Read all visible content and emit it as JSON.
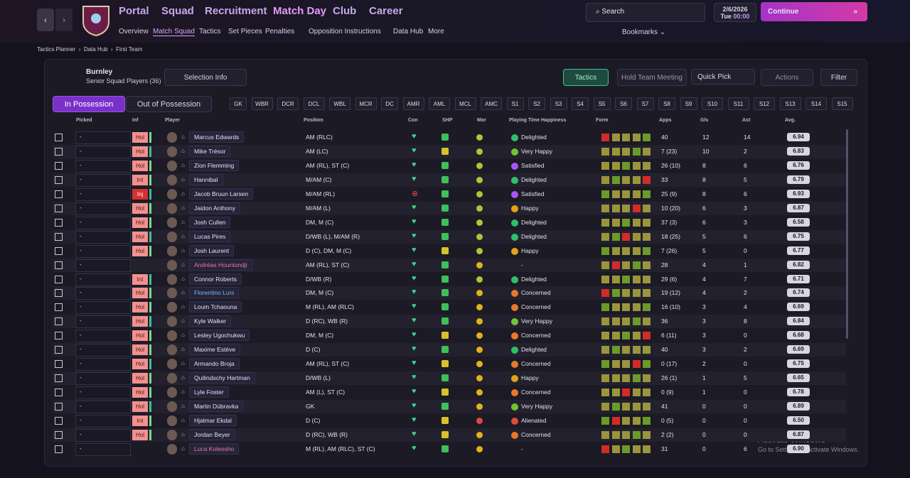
{
  "nav": {
    "menu": [
      "Portal",
      "Squad",
      "Recruitment",
      "Match Day",
      "Club",
      "Career"
    ],
    "submenu": [
      "Overview",
      "Match Squad",
      "Tactics",
      "Set Pieces",
      "Penalties",
      "Opposition Instructions",
      "Data Hub",
      "More"
    ],
    "search": "Search",
    "date": "2/6/2026",
    "day": "Tue",
    "time": "00:00",
    "continue": "Continue",
    "bookmarks": "Bookmarks"
  },
  "breadcrumb": [
    "Tactics Planner",
    "Data Hub",
    "First Team"
  ],
  "panel": {
    "club": "Burnley",
    "subtitle": "Senior Squad Players (36)",
    "selection_info": "Selection Info",
    "tactics": "Tactics",
    "hold_meeting": "Hold Team Meeting",
    "quick_pick": "Quick Pick",
    "actions": "Actions",
    "filter": "Filter",
    "tabs": [
      "In Possession",
      "Out of Possession"
    ],
    "positions": [
      "GK",
      "WBR",
      "DCR",
      "DCL",
      "WBL",
      "MCR",
      "DC",
      "AMR",
      "AML",
      "MCL",
      "AMC",
      "S1",
      "S2",
      "S3",
      "S4",
      "S5",
      "S6",
      "S7",
      "S8",
      "S9",
      "S10",
      "S11",
      "S12",
      "S13",
      "S14",
      "S15"
    ]
  },
  "table": {
    "columns": [
      "Picked",
      "Inf",
      "Player",
      "Position",
      "Con",
      "SHP",
      "Mor",
      "Playing Time Happiness",
      "Form",
      "Apps",
      "Gls",
      "Ast",
      "Avg."
    ],
    "rows": [
      [
        "-",
        "Hol",
        "Marcus Edwards",
        "AM (RLC)",
        "Delighted",
        "40",
        "12",
        "14",
        "6.94"
      ],
      [
        "-",
        "Hol",
        "Mike Trésor",
        "AM (LC)",
        "Very Happy",
        "7 (23)",
        "10",
        "2",
        "6.83"
      ],
      [
        "-",
        "Hol",
        "Zion Flemming",
        "AM (RL), ST (C)",
        "Satisfied",
        "26 (10)",
        "8",
        "6",
        "6.76"
      ],
      [
        "-",
        "Int",
        "Hannibal",
        "M/AM (C)",
        "Delighted",
        "33",
        "8",
        "5",
        "6.79"
      ],
      [
        "-",
        "Inj",
        "Jacob Bruun Larsen",
        "M/AM (RL)",
        "Satisfied",
        "25 (9)",
        "8",
        "6",
        "6.93"
      ],
      [
        "-",
        "Hol",
        "Jaidon Anthony",
        "M/AM (L)",
        "Happy",
        "10 (20)",
        "6",
        "3",
        "6.87"
      ],
      [
        "-",
        "Hol",
        "Josh Cullen",
        "DM, M (C)",
        "Delighted",
        "37 (3)",
        "6",
        "3",
        "6.58"
      ],
      [
        "-",
        "Hol",
        "Lucas Pires",
        "D/WB (L), M/AM (R)",
        "Delighted",
        "18 (25)",
        "5",
        "6",
        "6.75"
      ],
      [
        "-",
        "Hol",
        "Josh Laurent",
        "D (C), DM, M (C)",
        "Happy",
        "7 (26)",
        "5",
        "0",
        "6.77"
      ],
      [
        "-",
        null,
        "Andréas Hountondji",
        "AM (RL), ST (C)",
        "-",
        "28",
        "4",
        "1",
        "6.82"
      ],
      [
        "-",
        "Int",
        "Connor Roberts",
        "D/WB (R)",
        "Delighted",
        "29 (6)",
        "4",
        "7",
        "6.71"
      ],
      [
        "-",
        "Hol",
        "Florentino Luís",
        "DM, M (C)",
        "Concerned",
        "19 (12)",
        "4",
        "2",
        "6.74"
      ],
      [
        "-",
        "Hol",
        "Loum Tchaouna",
        "M (RL), AM (RLC)",
        "Concerned",
        "16 (10)",
        "3",
        "4",
        "6.69"
      ],
      [
        "-",
        "Hol",
        "Kyle Walker",
        "D (RC), WB (R)",
        "Very Happy",
        "36",
        "3",
        "8",
        "6.84"
      ],
      [
        "-",
        "Hol",
        "Lesley Ugochukwu",
        "DM, M (C)",
        "Concerned",
        "6 (11)",
        "3",
        "0",
        "6.68"
      ],
      [
        "-",
        "Hol",
        "Maxime Estève",
        "D (C)",
        "Delighted",
        "40",
        "3",
        "2",
        "6.69"
      ],
      [
        "-",
        "Hol",
        "Armando Broja",
        "AM (RL), ST (C)",
        "Concerned",
        "0 (17)",
        "2",
        "0",
        "6.75"
      ],
      [
        "-",
        "Hol",
        "Quilindschy Hartman",
        "D/WB (L)",
        "Happy",
        "26 (1)",
        "1",
        "5",
        "6.65"
      ],
      [
        "-",
        "Hol",
        "Lyle Foster",
        "AM (L), ST (C)",
        "Concerned",
        "0 (9)",
        "1",
        "0",
        "6.78"
      ],
      [
        "-",
        "Hol",
        "Martin Dúbravka",
        "GK",
        "Very Happy",
        "41",
        "0",
        "0",
        "6.89"
      ],
      [
        "-",
        "Int",
        "Hjalmar Ekdal",
        "D (C)",
        "Alienated",
        "0 (5)",
        "0",
        "0",
        "6.50"
      ],
      [
        "-",
        "Hol",
        "Jordan Beyer",
        "D (RC), WB (R)",
        "Concerned",
        "2 (2)",
        "0",
        "0",
        "6.87"
      ],
      [
        "-",
        null,
        "Luca Koleosho",
        "M (RL), AM (RLC), ST (C)",
        "-",
        "31",
        "0",
        "6",
        "6.90"
      ]
    ]
  },
  "watermark": {
    "title": "Activate Windows",
    "text": "Go to Settings to activate Windows."
  }
}
